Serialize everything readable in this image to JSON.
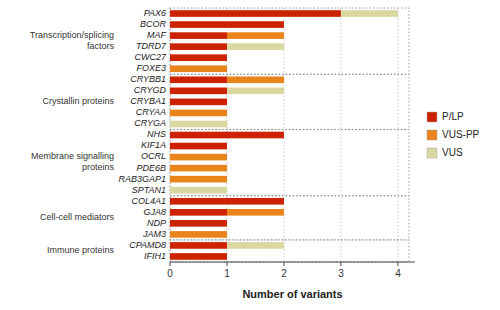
{
  "chart_data": {
    "type": "bar",
    "orientation": "horizontal",
    "stacked": true,
    "xlabel": "Number of variants",
    "categories": [
      "PAX6",
      "BCOR",
      "MAF",
      "TDRD7",
      "CWC27",
      "FOXE3",
      "CRYBB1",
      "CRYGD",
      "CRYBA1",
      "CRYAA",
      "CRYGA",
      "NHS",
      "KIF1A",
      "OCRL",
      "PDE6B",
      "RAB3GAP1",
      "SPTAN1",
      "COL4A1",
      "GJA8",
      "NDP",
      "JAM3",
      "CPAMD8",
      "IFIH1"
    ],
    "series": [
      {
        "name": "P/LP",
        "color": "#CC2200",
        "values": [
          3,
          2,
          1,
          1,
          1,
          0,
          1,
          1,
          1,
          0,
          0,
          2,
          1,
          0,
          0,
          0,
          0,
          2,
          1,
          1,
          0,
          1,
          1
        ]
      },
      {
        "name": "VUS-PP",
        "color": "#E8841A",
        "values": [
          0,
          0,
          1,
          0,
          0,
          1,
          1,
          0,
          0,
          1,
          0,
          0,
          0,
          1,
          1,
          1,
          0,
          0,
          1,
          0,
          1,
          0,
          0
        ]
      },
      {
        "name": "VUS",
        "color": "#D8D8A0",
        "values": [
          1,
          0,
          0,
          1,
          0,
          0,
          0,
          1,
          0,
          0,
          1,
          0,
          0,
          0,
          0,
          0,
          1,
          0,
          0,
          0,
          0,
          1,
          0
        ]
      }
    ],
    "groups": [
      {
        "name": "Transcription/splicing\nfactors",
        "from": "PAX6",
        "to": "FOXE3"
      },
      {
        "name": "Crystallin proteins",
        "from": "CRYBB1",
        "to": "CRYGA"
      },
      {
        "name": "Membrane signalling\nproteins",
        "from": "NHS",
        "to": "SPTAN1"
      },
      {
        "name": "Cell-cell mediators",
        "from": "COL4A1",
        "to": "JAM3"
      },
      {
        "name": "Immune proteins",
        "from": "CPAMD8",
        "to": "IFIH1"
      }
    ],
    "xlim": [
      0,
      4.3
    ],
    "xticks": [
      0,
      1,
      2,
      3,
      4
    ],
    "grid": true,
    "legend": "right"
  }
}
